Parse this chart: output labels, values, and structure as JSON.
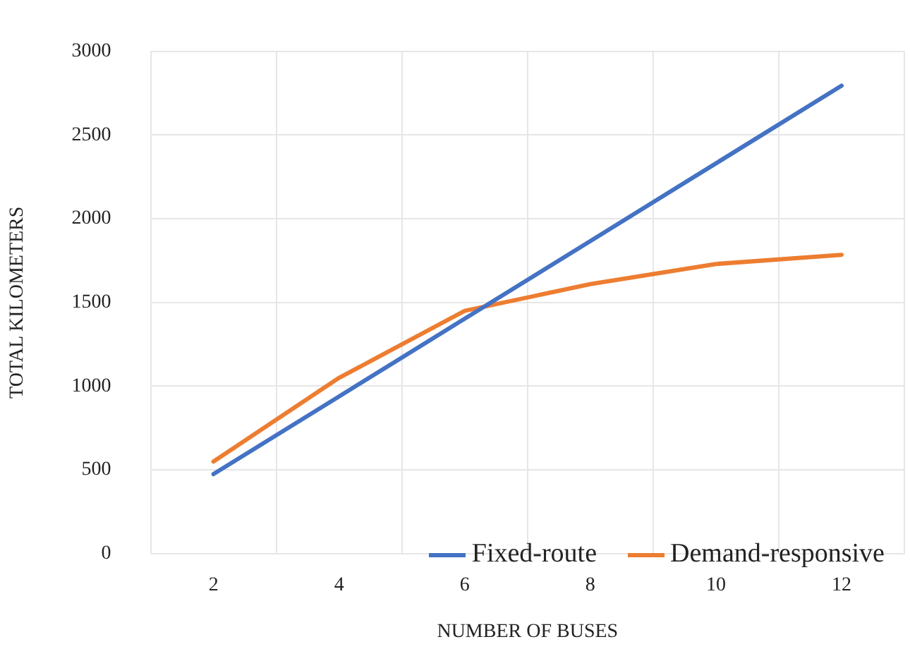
{
  "chart_data": {
    "type": "line",
    "xlabel": "NUMBER OF BUSES",
    "ylabel": "TOTAL KILOMETERS",
    "categories": [
      "2",
      "4",
      "6",
      "8",
      "10",
      "12"
    ],
    "series": [
      {
        "name": "Fixed-route",
        "color": "#4472c4",
        "values": [
          475,
          939,
          1403,
          1867,
          2331,
          2795
        ]
      },
      {
        "name": "Demand-responsive",
        "color": "#ed7d31",
        "values": [
          550,
          1050,
          1450,
          1610,
          1730,
          1785
        ]
      }
    ],
    "ylim": [
      0,
      3000
    ],
    "yticks": [
      0,
      500,
      1000,
      1500,
      2000,
      2500,
      3000
    ],
    "grid": true,
    "legend": "bottom right",
    "marker": "none",
    "line_style": "solid"
  }
}
